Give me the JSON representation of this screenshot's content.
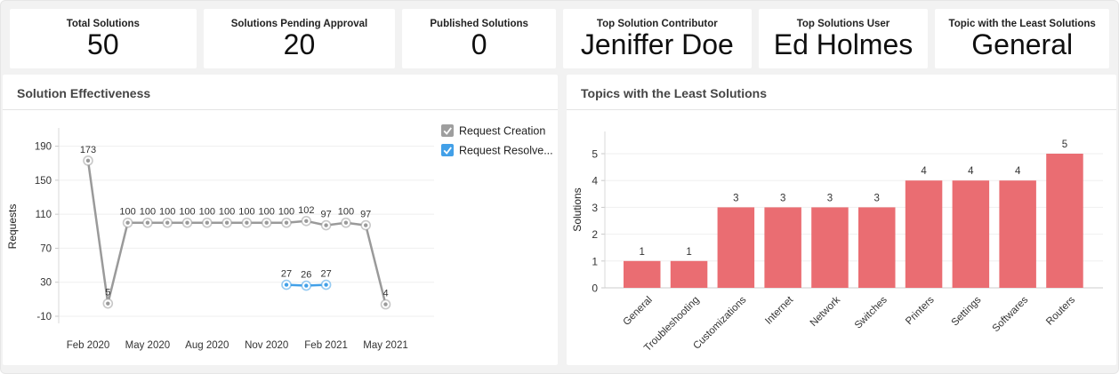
{
  "cards": [
    {
      "label": "Total Solutions",
      "value": "50"
    },
    {
      "label": "Solutions Pending Approval",
      "value": "20"
    },
    {
      "label": "Published Solutions",
      "value": "0"
    },
    {
      "label": "Top Solution Contributor",
      "value": "Jeniffer Doe"
    },
    {
      "label": "Top Solutions User",
      "value": "Ed Holmes"
    },
    {
      "label": "Topic with the Least Solutions",
      "value": "General"
    }
  ],
  "panels": {
    "left": {
      "title": "Solution Effectiveness"
    },
    "right": {
      "title": "Topics with the Least Solutions"
    }
  },
  "colors": {
    "request_creation": "#9a9a9a",
    "request_resolved": "#42a0e8",
    "bar": "#ea6d72",
    "axis_text": "#333333",
    "grid": "#efefef",
    "axis_line": "#d8d8d8"
  },
  "chart_data": [
    {
      "type": "line",
      "title": "Solution Effectiveness",
      "xlabel": "",
      "ylabel": "Requests",
      "ylim": [
        -10,
        200
      ],
      "yticks": [
        190,
        150,
        110,
        70,
        30,
        -10
      ],
      "x_point_count": 16,
      "x_tick_labels": [
        "Feb 2020",
        "May 2020",
        "Aug 2020",
        "Nov 2020",
        "Feb 2021",
        "May 2021"
      ],
      "x_tick_indices": [
        0,
        3,
        6,
        9,
        12,
        15
      ],
      "grid": true,
      "legend_position": "right",
      "series": [
        {
          "name": "Request Creation",
          "color": "#9a9a9a",
          "checkbox_color": "#9e9e9e",
          "checked": true,
          "values": [
            173,
            5,
            100,
            100,
            100,
            100,
            100,
            100,
            100,
            100,
            100,
            102,
            97,
            100,
            97,
            4
          ]
        },
        {
          "name": "Request Resolve...",
          "color": "#42a0e8",
          "checkbox_color": "#42a0e8",
          "checked": true,
          "values": [
            null,
            null,
            null,
            null,
            null,
            null,
            null,
            null,
            null,
            null,
            27,
            26,
            27,
            null,
            null,
            null
          ]
        }
      ]
    },
    {
      "type": "bar",
      "title": "Topics with the Least Solutions",
      "xlabel": "",
      "ylabel": "Solutions",
      "ylim": [
        0,
        6
      ],
      "yticks": [
        0,
        1,
        2,
        3,
        4,
        5
      ],
      "grid": true,
      "bar_color": "#ea6d72",
      "categories": [
        "General",
        "Troubleshooting",
        "Customizations",
        "Internet",
        "Network",
        "Switches",
        "Printers",
        "Settings",
        "Softwares",
        "Routers"
      ],
      "values": [
        1,
        1,
        3,
        3,
        3,
        3,
        4,
        4,
        4,
        5
      ]
    }
  ]
}
